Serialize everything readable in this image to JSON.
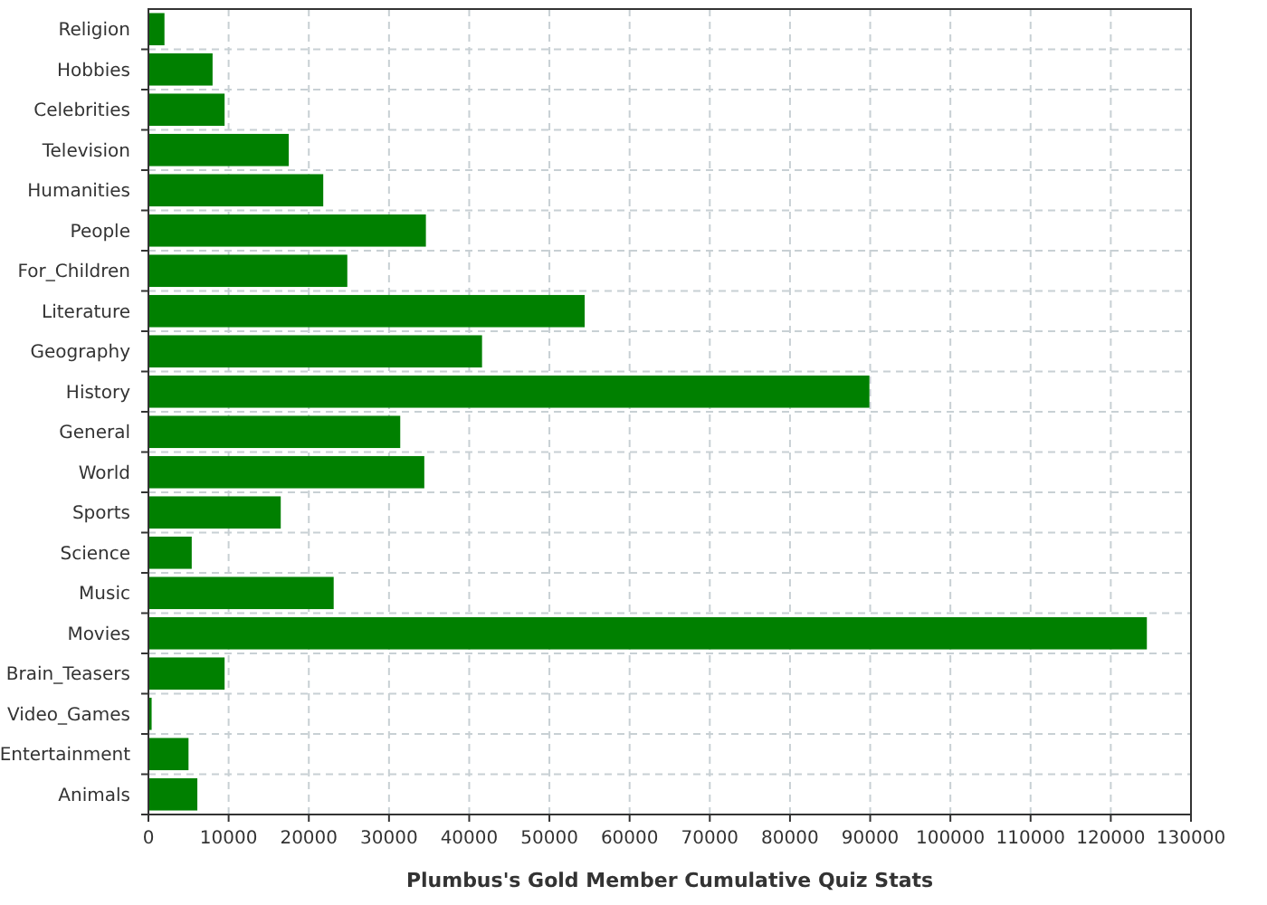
{
  "chart_data": {
    "type": "bar",
    "orientation": "horizontal",
    "xlabel": "Plumbus's Gold Member Cumulative Quiz Stats",
    "categories": [
      "Religion",
      "Hobbies",
      "Celebrities",
      "Television",
      "Humanities",
      "People",
      "For_Children",
      "Literature",
      "Geography",
      "History",
      "General",
      "World",
      "Sports",
      "Science",
      "Music",
      "Movies",
      "Brain_Teasers",
      "Video_Games",
      "Entertainment",
      "Animals"
    ],
    "values": [
      2000,
      8000,
      9500,
      17500,
      21800,
      34600,
      24800,
      54400,
      41600,
      89900,
      31400,
      34400,
      16500,
      5400,
      23100,
      124500,
      9500,
      400,
      5000,
      6100
    ],
    "color": "#008000",
    "xlim": [
      0,
      130000
    ],
    "xticks": [
      0,
      10000,
      20000,
      30000,
      40000,
      50000,
      60000,
      70000,
      80000,
      90000,
      100000,
      110000,
      120000,
      130000
    ],
    "grid": true
  }
}
